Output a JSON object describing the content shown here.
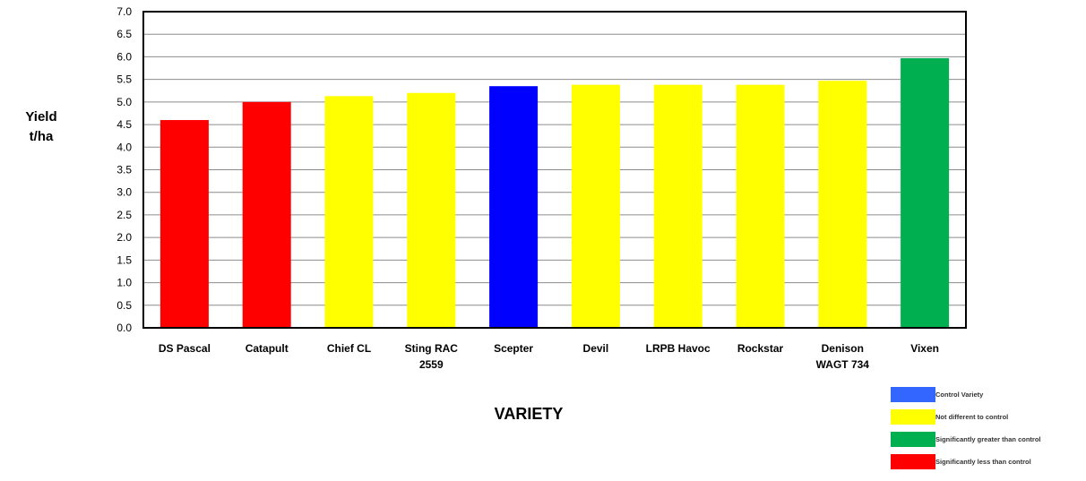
{
  "chart_data": {
    "type": "bar",
    "ylabel_line1": "Yield",
    "ylabel_line2": "t/ha",
    "xlabel": "VARIETY",
    "ylim": [
      0,
      7
    ],
    "ytick_step": 0.5,
    "categories": [
      [
        "DS Pascal"
      ],
      [
        "Catapult"
      ],
      [
        "Chief CL"
      ],
      [
        "Sting RAC",
        "2559"
      ],
      [
        "Scepter"
      ],
      [
        "Devil"
      ],
      [
        "LRPB Havoc"
      ],
      [
        "Rockstar"
      ],
      [
        "Denison",
        "WAGT 734"
      ],
      [
        "Vixen"
      ]
    ],
    "values": [
      4.6,
      5.0,
      5.13,
      5.2,
      5.35,
      5.38,
      5.38,
      5.38,
      5.47,
      5.97
    ],
    "groups": [
      "less",
      "less",
      "same",
      "same",
      "control",
      "same",
      "same",
      "same",
      "same",
      "greater"
    ],
    "colors": {
      "less": "#ff0000",
      "same": "#ffff00",
      "control": "#0000ff",
      "greater": "#00b050"
    },
    "grid": true
  },
  "legend": [
    {
      "label": "Control Variety",
      "color": "#3366ff"
    },
    {
      "label": "Not different to control",
      "color": "#ffff00"
    },
    {
      "label": "Significantly greater than control",
      "color": "#00b050"
    },
    {
      "label": "Significantly less than control",
      "color": "#ff0000"
    }
  ]
}
